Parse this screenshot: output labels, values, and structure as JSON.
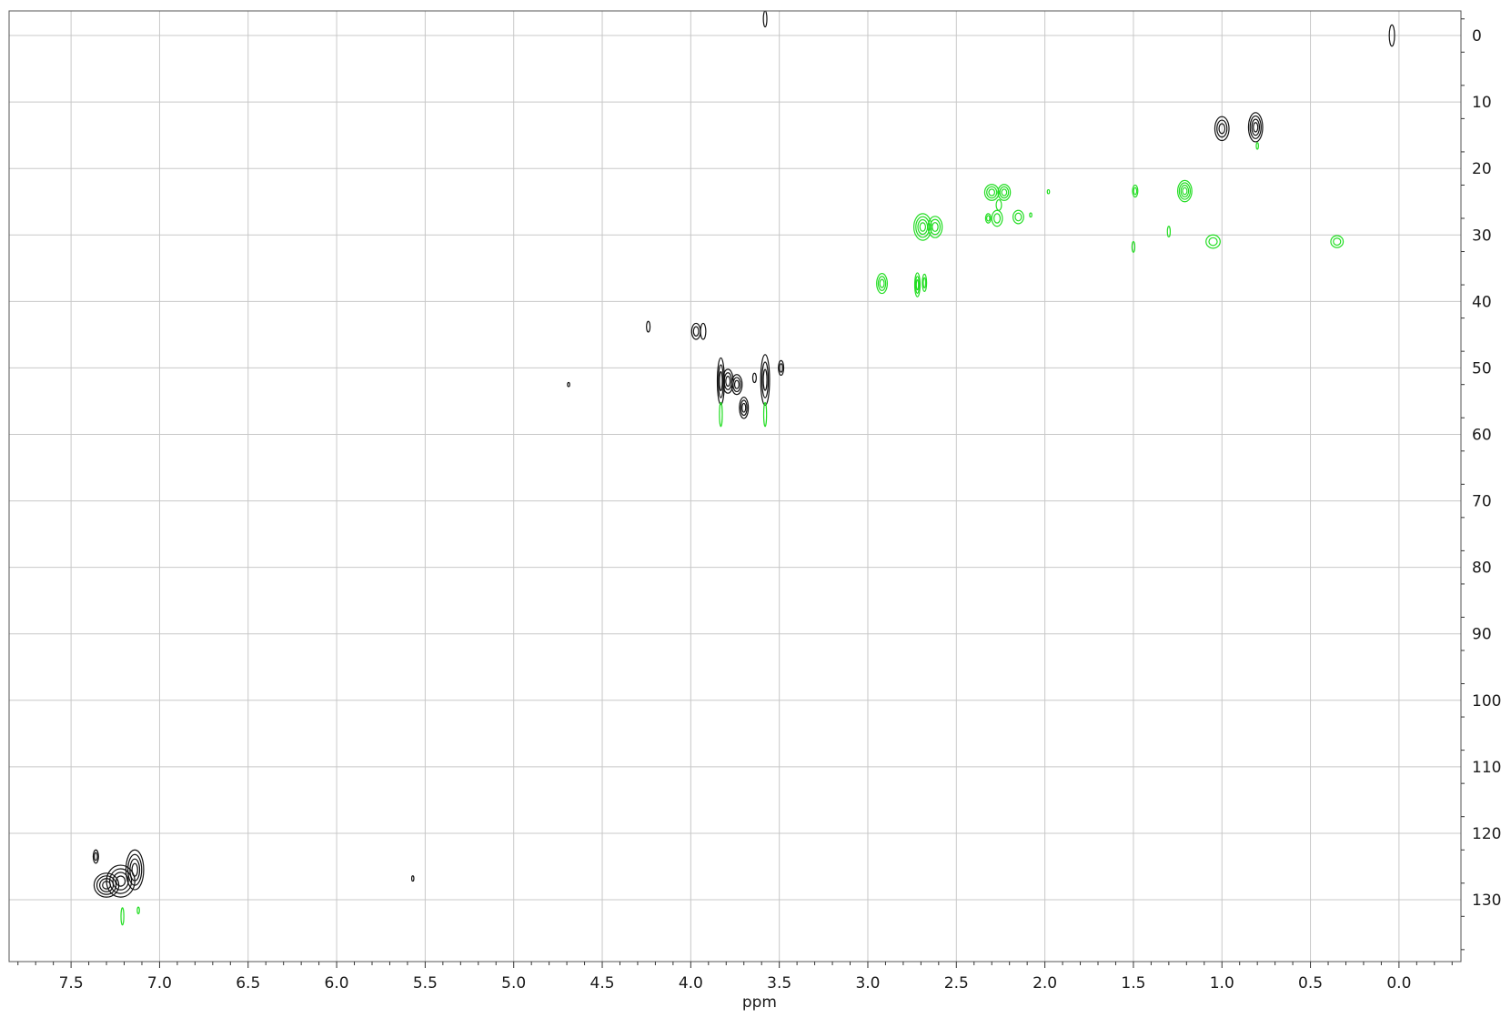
{
  "chart_data": {
    "type": "contour",
    "title": "",
    "xlabel": "ppm",
    "ylabel": "",
    "x_axis": {
      "reversed": true,
      "ticks": [
        7.5,
        7.0,
        6.5,
        6.0,
        5.5,
        5.0,
        4.5,
        4.0,
        3.5,
        3.0,
        2.5,
        2.0,
        1.5,
        1.0,
        0.5,
        0.0
      ],
      "tick_labels": [
        "7.5",
        "7.0",
        "6.5",
        "6.0",
        "5.5",
        "5.0",
        "4.5",
        "4.0",
        "3.5",
        "3.0",
        "2.5",
        "2.0",
        "1.5",
        "1.0",
        "0.5",
        "0.0"
      ],
      "range": [
        7.85,
        -0.35
      ]
    },
    "y_axis": {
      "position": "right",
      "reversed": true,
      "ticks": [
        0,
        10,
        20,
        30,
        40,
        50,
        60,
        70,
        80,
        90,
        100,
        110,
        120,
        130
      ],
      "tick_labels": [
        "0",
        "10",
        "20",
        "30",
        "40",
        "50",
        "60",
        "70",
        "80",
        "90",
        "100",
        "110",
        "120",
        "130"
      ],
      "range": [
        -3.7,
        139.3
      ]
    },
    "grid": true,
    "colors": {
      "positive": "#111111",
      "negative": "#22dd22",
      "grid": "#c8c8c8",
      "frame": "#555555"
    },
    "series": [
      {
        "name": "",
        "color": "#111111",
        "peaks": [
          {
            "x": 3.58,
            "y": -2.5,
            "w": 0.01,
            "h": 1.2,
            "levels": 1
          },
          {
            "x": 0.04,
            "y": 0.0,
            "w": 0.015,
            "h": 1.6,
            "levels": 1
          },
          {
            "x": 1.0,
            "y": 14.0,
            "w": 0.04,
            "h": 1.8,
            "levels": 3
          },
          {
            "x": 0.81,
            "y": 13.8,
            "w": 0.04,
            "h": 2.2,
            "levels": 4
          },
          {
            "x": 4.24,
            "y": 43.8,
            "w": 0.01,
            "h": 0.8,
            "levels": 1
          },
          {
            "x": 3.97,
            "y": 44.5,
            "w": 0.025,
            "h": 1.2,
            "levels": 2
          },
          {
            "x": 3.93,
            "y": 44.5,
            "w": 0.015,
            "h": 1.2,
            "levels": 1
          },
          {
            "x": 3.49,
            "y": 50.0,
            "w": 0.015,
            "h": 1.1,
            "levels": 2
          },
          {
            "x": 3.83,
            "y": 52.0,
            "w": 0.02,
            "h": 3.5,
            "levels": 3
          },
          {
            "x": 3.79,
            "y": 52.0,
            "w": 0.03,
            "h": 1.8,
            "levels": 3
          },
          {
            "x": 3.74,
            "y": 52.5,
            "w": 0.03,
            "h": 1.5,
            "levels": 3
          },
          {
            "x": 3.7,
            "y": 56.0,
            "w": 0.025,
            "h": 1.6,
            "levels": 3
          },
          {
            "x": 3.64,
            "y": 51.5,
            "w": 0.01,
            "h": 0.7,
            "levels": 1
          },
          {
            "x": 3.58,
            "y": 51.8,
            "w": 0.025,
            "h": 3.8,
            "levels": 3
          },
          {
            "x": 4.69,
            "y": 52.5,
            "w": 0.005,
            "h": 0.3,
            "levels": 1
          },
          {
            "x": 5.57,
            "y": 126.8,
            "w": 0.005,
            "h": 0.4,
            "levels": 1
          },
          {
            "x": 7.36,
            "y": 123.5,
            "w": 0.015,
            "h": 1.0,
            "levels": 2
          },
          {
            "x": 7.3,
            "y": 127.8,
            "w": 0.07,
            "h": 1.8,
            "levels": 4
          },
          {
            "x": 7.22,
            "y": 127.2,
            "w": 0.08,
            "h": 2.4,
            "levels": 4
          },
          {
            "x": 7.14,
            "y": 125.5,
            "w": 0.05,
            "h": 3.0,
            "levels": 4
          }
        ]
      },
      {
        "name": "",
        "color": "#22dd22",
        "peaks": [
          {
            "x": 0.8,
            "y": 16.6,
            "w": 0.005,
            "h": 0.5,
            "levels": 1
          },
          {
            "x": 2.3,
            "y": 23.6,
            "w": 0.04,
            "h": 1.2,
            "levels": 3
          },
          {
            "x": 2.23,
            "y": 23.6,
            "w": 0.035,
            "h": 1.2,
            "levels": 3
          },
          {
            "x": 2.26,
            "y": 25.5,
            "w": 0.015,
            "h": 0.8,
            "levels": 1
          },
          {
            "x": 1.98,
            "y": 23.5,
            "w": 0.005,
            "h": 0.3,
            "levels": 1
          },
          {
            "x": 1.49,
            "y": 23.4,
            "w": 0.015,
            "h": 0.9,
            "levels": 2
          },
          {
            "x": 1.21,
            "y": 23.4,
            "w": 0.04,
            "h": 1.6,
            "levels": 4
          },
          {
            "x": 2.32,
            "y": 27.5,
            "w": 0.015,
            "h": 0.7,
            "levels": 2
          },
          {
            "x": 2.27,
            "y": 27.5,
            "w": 0.03,
            "h": 1.2,
            "levels": 2
          },
          {
            "x": 2.15,
            "y": 27.3,
            "w": 0.03,
            "h": 1.0,
            "levels": 2
          },
          {
            "x": 2.08,
            "y": 27.0,
            "w": 0.004,
            "h": 0.3,
            "levels": 1
          },
          {
            "x": 2.69,
            "y": 28.8,
            "w": 0.05,
            "h": 2.0,
            "levels": 4
          },
          {
            "x": 2.62,
            "y": 28.8,
            "w": 0.04,
            "h": 1.6,
            "levels": 3
          },
          {
            "x": 1.3,
            "y": 29.5,
            "w": 0.008,
            "h": 0.8,
            "levels": 1
          },
          {
            "x": 1.05,
            "y": 31.0,
            "w": 0.04,
            "h": 1.0,
            "levels": 2
          },
          {
            "x": 1.5,
            "y": 31.8,
            "w": 0.008,
            "h": 0.8,
            "levels": 1
          },
          {
            "x": 0.35,
            "y": 31.0,
            "w": 0.035,
            "h": 0.9,
            "levels": 2
          },
          {
            "x": 2.92,
            "y": 37.3,
            "w": 0.03,
            "h": 1.5,
            "levels": 3
          },
          {
            "x": 2.72,
            "y": 37.5,
            "w": 0.015,
            "h": 1.8,
            "levels": 3
          },
          {
            "x": 2.68,
            "y": 37.2,
            "w": 0.012,
            "h": 1.3,
            "levels": 2
          },
          {
            "x": 3.83,
            "y": 57.0,
            "w": 0.008,
            "h": 1.8,
            "levels": 1
          },
          {
            "x": 3.58,
            "y": 57.0,
            "w": 0.008,
            "h": 1.8,
            "levels": 1
          },
          {
            "x": 7.21,
            "y": 132.5,
            "w": 0.008,
            "h": 1.3,
            "levels": 1
          },
          {
            "x": 7.12,
            "y": 131.6,
            "w": 0.005,
            "h": 0.5,
            "levels": 1
          }
        ]
      }
    ]
  }
}
